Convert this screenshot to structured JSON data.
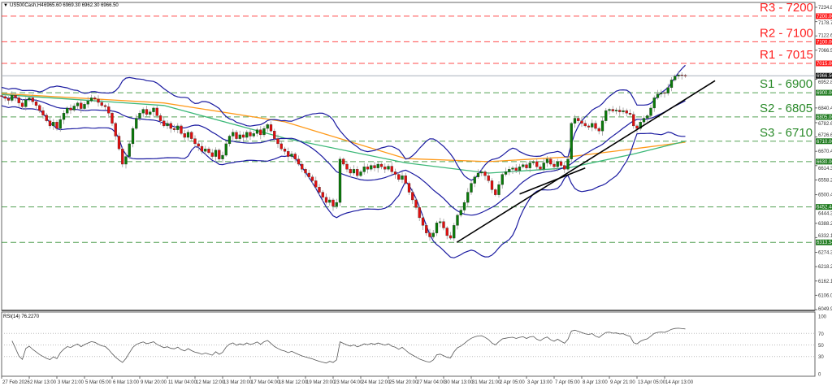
{
  "header": {
    "symbol_title": "US500Cash,H4",
    "ohlc_text": "6965.60 6969.30 6962.30 6966.50"
  },
  "rsi_panel": {
    "title": "RSI(14) 76.2270",
    "levels": [
      100,
      70,
      50,
      30,
      0
    ]
  },
  "colors": {
    "bull": "#0b7a0b",
    "bear": "#e01010",
    "wick": "#9a9a9a",
    "resistance": "#ff2020",
    "support": "#2a8a2a",
    "bollinger": "#1a1aa0",
    "ma_fast": "#3cb878",
    "ma_slow": "#ff9a1a",
    "trendline": "#000000",
    "bid_line": "#a8b0bc"
  },
  "chart_data": {
    "type": "candlestick",
    "ylim": [
      6049.9,
      7234.8
    ],
    "price_ticks": [
      "7234.80",
      "7178.70",
      "7122.60",
      "7066.50",
      "6952.80",
      "6840.40",
      "6782.60",
      "6726.60",
      "6670.40",
      "6614.30",
      "6558.20",
      "6500.40",
      "6444.30",
      "6388.20",
      "6332.10",
      "6274.30",
      "6218.20",
      "6162.10",
      "6106.00",
      "6049.90"
    ],
    "time_ticks": [
      "27 Feb 2026",
      "2 Mar 13:00",
      "3 Mar 21:00",
      "5 Mar 05:00",
      "6 Mar 13:00",
      "9 Mar 20:00",
      "11 Mar 04:00",
      "12 Mar 12:00",
      "13 Mar 20:00",
      "17 Mar 04:00",
      "18 Mar 12:00",
      "19 Mar 20:00",
      "23 Mar 04:00",
      "24 Mar 12:00",
      "25 Mar 20:00",
      "27 Mar 04:00",
      "30 Mar 13:00",
      "31 Mar 21:00",
      "2 Apr 05:00",
      "3 Apr 13:00",
      "7 Apr 05:00",
      "8 Apr 13:00",
      "9 Apr 21:00",
      "13 Apr 05:00",
      "14 Apr 13:00"
    ],
    "bars_per_time_tick": 8,
    "close": [
      6885,
      6878,
      6870,
      6890,
      6880,
      6860,
      6845,
      6872,
      6880,
      6865,
      6850,
      6830,
      6812,
      6790,
      6770,
      6785,
      6760,
      6795,
      6820,
      6840,
      6832,
      6848,
      6860,
      6838,
      6855,
      6868,
      6880,
      6875,
      6862,
      6850,
      6845,
      6820,
      6780,
      6730,
      6680,
      6620,
      6650,
      6700,
      6760,
      6800,
      6820,
      6835,
      6815,
      6825,
      6840,
      6810,
      6790,
      6770,
      6780,
      6760,
      6755,
      6770,
      6740,
      6725,
      6745,
      6720,
      6700,
      6690,
      6670,
      6680,
      6665,
      6650,
      6675,
      6640,
      6655,
      6700,
      6730,
      6745,
      6720,
      6735,
      6725,
      6745,
      6730,
      6740,
      6755,
      6735,
      6760,
      6775,
      6750,
      6720,
      6700,
      6680,
      6670,
      6650,
      6660,
      6640,
      6620,
      6600,
      6585,
      6570,
      6555,
      6530,
      6510,
      6490,
      6470,
      6480,
      6455,
      6470,
      6640,
      6620,
      6600,
      6585,
      6600,
      6575,
      6590,
      6610,
      6600,
      6615,
      6605,
      6620,
      6610,
      6600,
      6612,
      6590,
      6580,
      6560,
      6575,
      6545,
      6510,
      6480,
      6450,
      6410,
      6380,
      6350,
      6335,
      6350,
      6390,
      6395,
      6370,
      6340,
      6330,
      6380,
      6420,
      6440,
      6470,
      6510,
      6545,
      6570,
      6585,
      6590,
      6575,
      6555,
      6520,
      6500,
      6540,
      6580,
      6590,
      6600,
      6605,
      6595,
      6610,
      6618,
      6605,
      6625,
      6630,
      6610,
      6600,
      6625,
      6640,
      6620,
      6610,
      6630,
      6615,
      6600,
      6640,
      6780,
      6800,
      6790,
      6780,
      6770,
      6765,
      6780,
      6760,
      6750,
      6790,
      6830,
      6835,
      6828,
      6832,
      6825,
      6830,
      6820,
      6815,
      6770,
      6760,
      6785,
      6800,
      6810,
      6840,
      6880,
      6895,
      6900,
      6898,
      6920,
      6950,
      6965,
      6970,
      6968,
      6966.5
    ],
    "moving_average_fast": [
      [
        0,
        6893
      ],
      [
        47,
        6850
      ],
      [
        82,
        6722
      ],
      [
        117,
        6625
      ],
      [
        141,
        6585
      ],
      [
        164,
        6605
      ],
      [
        183,
        6660
      ],
      [
        198,
        6710
      ]
    ],
    "moving_average_slow": [
      [
        0,
        6897
      ],
      [
        47,
        6860
      ],
      [
        82,
        6786
      ],
      [
        117,
        6642
      ],
      [
        141,
        6630
      ],
      [
        164,
        6648
      ],
      [
        183,
        6680
      ],
      [
        198,
        6706
      ]
    ],
    "bollinger": {
      "period": 20,
      "deviations": 2
    },
    "rsi_period": 14,
    "trendlines": [
      [
        [
          131.8,
          6313.5
        ],
        [
          206.6,
          6947
        ]
      ],
      [
        [
          150,
          6503
        ],
        [
          169,
          6605
        ]
      ]
    ],
    "bid": 6966.5,
    "levels": [
      {
        "label": "R3 - 7200",
        "price": 7200,
        "tag": "7200.00",
        "kind": "resistance"
      },
      {
        "label": "R2 - 7100",
        "price": 7100,
        "tag": "7100.00",
        "kind": "resistance"
      },
      {
        "label": "R1 - 7015",
        "price": 7015,
        "tag": "7015.00",
        "kind": "resistance"
      },
      {
        "label": "S1 - 6900",
        "price": 6900,
        "tag": "6900.00",
        "kind": "support"
      },
      {
        "label": "S2 - 6805",
        "price": 6805,
        "tag": "6805.00",
        "kind": "support"
      },
      {
        "label": "S3 - 6710",
        "price": 6710,
        "tag": "6710.00",
        "kind": "support"
      },
      {
        "label": "",
        "price": 6630,
        "tag": "6630.00",
        "kind": "support"
      },
      {
        "label": "",
        "price": 6452.44,
        "tag": "6452.44",
        "kind": "support"
      },
      {
        "label": "",
        "price": 6313.54,
        "tag": "6313.54",
        "kind": "support"
      }
    ],
    "bid_tag": "6966.50"
  }
}
